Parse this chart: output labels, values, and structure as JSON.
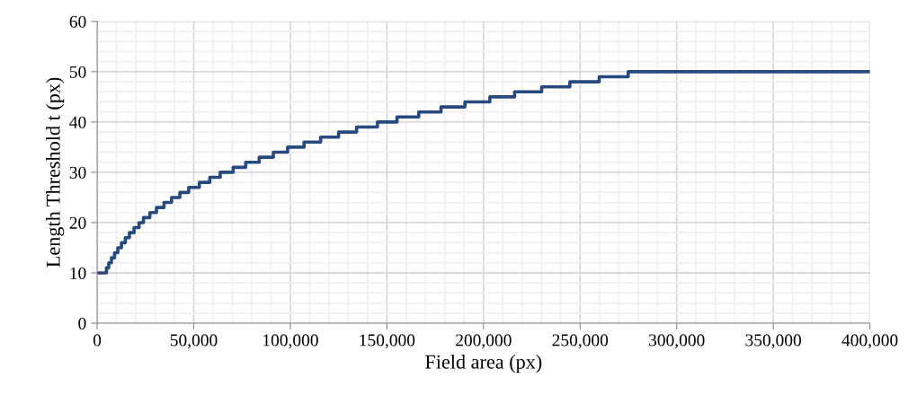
{
  "chart_data": {
    "type": "step",
    "xlabel": "Field area (px)",
    "ylabel": "Length Threshold t (px)",
    "x": [
      0,
      4800,
      6000,
      7400,
      9000,
      10700,
      12600,
      14600,
      16700,
      19100,
      21700,
      24000,
      27300,
      30700,
      34600,
      38500,
      42800,
      47400,
      52900,
      58300,
      63700,
      70400,
      76900,
      83900,
      91200,
      98600,
      107100,
      115700,
      125000,
      134300,
      145100,
      155200,
      166500,
      178000,
      190400,
      203300,
      216100,
      230100,
      244700,
      259900,
      274900,
      400000
    ],
    "series": [
      {
        "color": "#264a7f",
        "values": [
          10,
          11,
          12,
          13,
          14,
          15,
          16,
          17,
          18,
          19,
          20,
          21,
          22,
          23,
          24,
          25,
          26,
          27,
          28,
          29,
          30,
          31,
          32,
          33,
          34,
          35,
          36,
          37,
          38,
          39,
          40,
          41,
          42,
          43,
          44,
          45,
          46,
          47,
          48,
          49,
          50,
          50
        ]
      }
    ],
    "xlim": [
      0,
      400000
    ],
    "xticks": [
      {
        "value": 0,
        "label": "0"
      },
      {
        "value": 50000,
        "label": "50,000"
      },
      {
        "value": 100000,
        "label": "100,000"
      },
      {
        "value": 150000,
        "label": "150,000"
      },
      {
        "value": 200000,
        "label": "200,000"
      },
      {
        "value": 250000,
        "label": "250,000"
      },
      {
        "value": 300000,
        "label": "300,000"
      },
      {
        "value": 350000,
        "label": "350,000"
      },
      {
        "value": 400000,
        "label": "400,000"
      }
    ],
    "ylim": [
      0,
      60
    ],
    "yticks": [
      0,
      10,
      20,
      30,
      40,
      50,
      60
    ],
    "grid": true,
    "line_style": "solid",
    "marker": "none"
  }
}
